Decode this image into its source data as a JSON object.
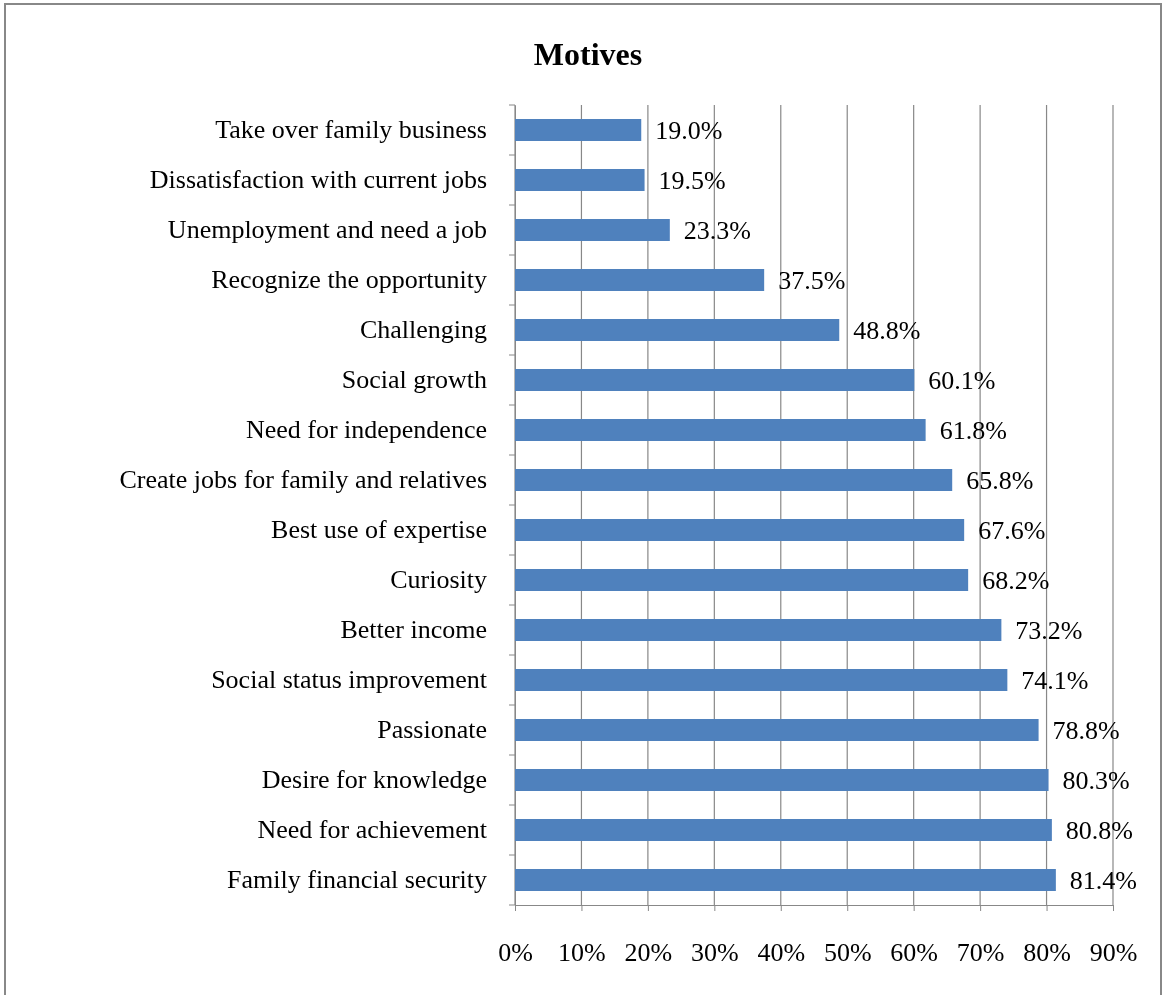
{
  "chart_data": {
    "type": "bar",
    "orientation": "horizontal",
    "title": "Motives",
    "categories": [
      "Take over family business",
      "Dissatisfaction with current jobs",
      "Unemployment and need a job",
      "Recognize the opportunity",
      "Challenging",
      "Social growth",
      "Need for independence",
      "Create jobs for family and relatives",
      "Best use of expertise",
      "Curiosity",
      "Better income",
      "Social status improvement",
      "Passionate",
      "Desire for knowledge",
      "Need for achievement",
      "Family financial security"
    ],
    "values": [
      19.0,
      19.5,
      23.3,
      37.5,
      48.8,
      60.1,
      61.8,
      65.8,
      67.6,
      68.2,
      73.2,
      74.1,
      78.8,
      80.3,
      80.8,
      81.4
    ],
    "value_labels": [
      "19.0%",
      "19.5%",
      "23.3%",
      "37.5%",
      "48.8%",
      "60.1%",
      "61.8%",
      "65.8%",
      "67.6%",
      "68.2%",
      "73.2%",
      "74.1%",
      "78.8%",
      "80.3%",
      "80.8%",
      "81.4%"
    ],
    "color": "#4f81bd",
    "xlim": [
      0,
      90
    ],
    "xticks": [
      {
        "value": 0,
        "label": "0%"
      },
      {
        "value": 10,
        "label": "10%"
      },
      {
        "value": 20,
        "label": "20%"
      },
      {
        "value": 30,
        "label": "30%"
      },
      {
        "value": 40,
        "label": "40%"
      },
      {
        "value": 50,
        "label": "50%"
      },
      {
        "value": 60,
        "label": "60%"
      },
      {
        "value": 70,
        "label": "70%"
      },
      {
        "value": 80,
        "label": "80%"
      },
      {
        "value": 90,
        "label": "90%"
      }
    ],
    "grid": "x"
  }
}
